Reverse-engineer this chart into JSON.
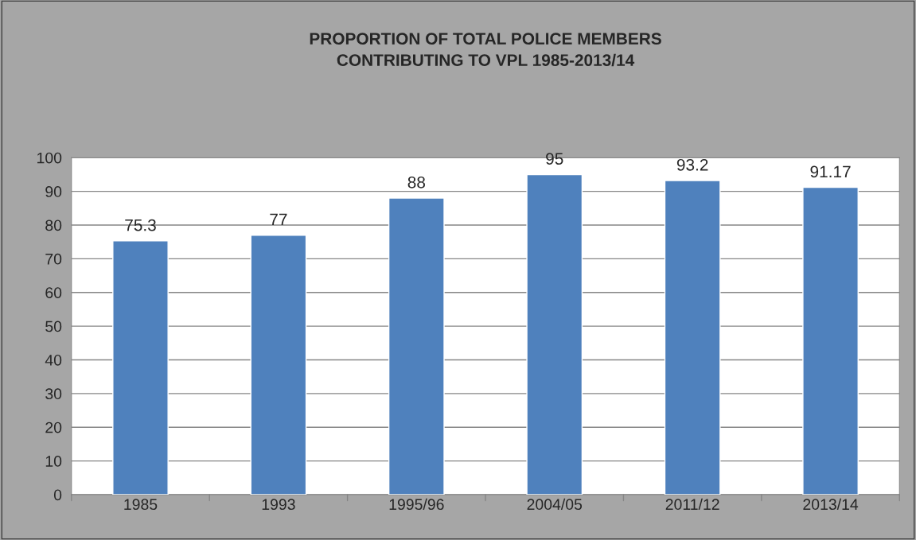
{
  "chart_data": {
    "type": "bar",
    "title": "PROPORTION OF TOTAL POLICE MEMBERS\nCONTRIBUTING TO VPL 1985-2013/14",
    "categories": [
      "1985",
      "1993",
      "1995/96",
      "2004/05",
      "2011/12",
      "2013/14"
    ],
    "values": [
      75.3,
      77,
      88,
      95,
      93.2,
      91.17
    ],
    "value_labels": [
      "75.3",
      "77",
      "88",
      "95",
      "93.2",
      "91.17"
    ],
    "color": "#4f81bd",
    "ylim": [
      0,
      100
    ],
    "yticks": [
      0,
      10,
      20,
      30,
      40,
      50,
      60,
      70,
      80,
      90,
      100
    ],
    "grid": "y",
    "legend": false
  }
}
